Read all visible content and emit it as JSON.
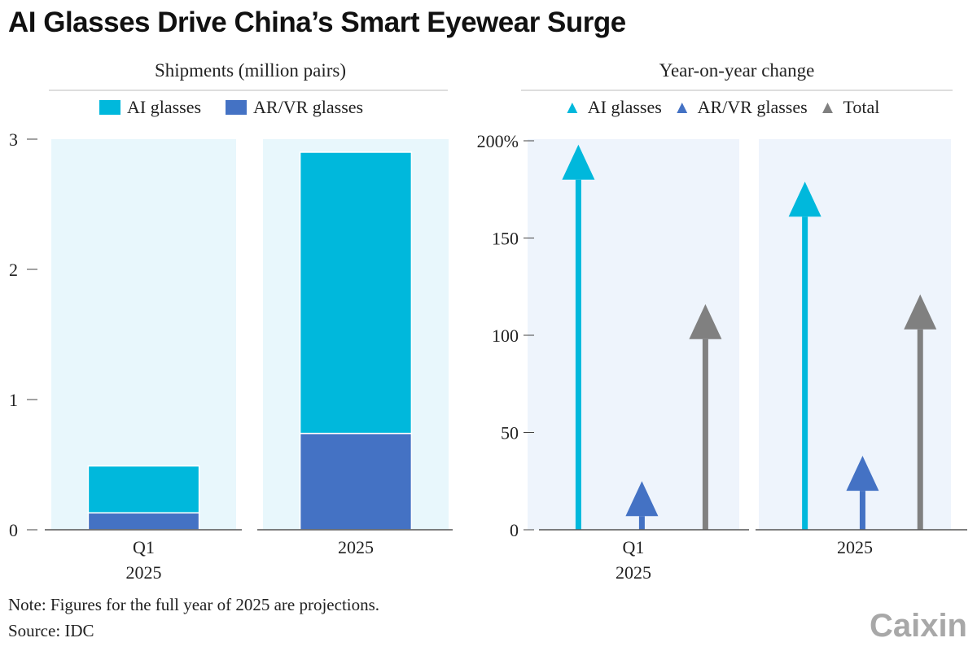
{
  "title": "AI Glasses Drive China’s Smart Eyewear Surge",
  "colors": {
    "ai": "#00b8dc",
    "arvr": "#4472c4",
    "total": "#808080",
    "panel_left": "#e8f7fc",
    "panel_right": "#eef4fc"
  },
  "chart_data": [
    {
      "type": "bar",
      "stacked": true,
      "title": "Shipments (million pairs)",
      "categories": [
        "Q1\n2025",
        "2025"
      ],
      "category_lines": [
        [
          "Q1",
          "2025"
        ],
        [
          "2025"
        ]
      ],
      "series": [
        {
          "name": "AR/VR glasses",
          "values": [
            0.13,
            0.74
          ]
        },
        {
          "name": "AI glasses",
          "values": [
            0.36,
            2.16
          ]
        }
      ],
      "ylim": [
        0,
        3
      ],
      "yticks": [
        "0",
        "1",
        "2",
        "3"
      ],
      "legend": "top"
    },
    {
      "type": "arrow",
      "title": "Year-on-year change",
      "categories": [
        "Q1\n2025",
        "2025"
      ],
      "category_lines": [
        [
          "Q1",
          "2025"
        ],
        [
          "2025"
        ]
      ],
      "series": [
        {
          "name": "AI glasses",
          "values": [
            198,
            179
          ]
        },
        {
          "name": "AR/VR glasses",
          "values": [
            25,
            38
          ]
        },
        {
          "name": "Total",
          "values": [
            116,
            121
          ]
        }
      ],
      "ylim": [
        0,
        200
      ],
      "yticks": [
        "0",
        "50",
        "100",
        "150",
        "200%"
      ],
      "legend": "top"
    }
  ],
  "note": "Note: Figures for the full year of 2025 are projections.",
  "source": "Source: IDC",
  "logo": "Caixin"
}
